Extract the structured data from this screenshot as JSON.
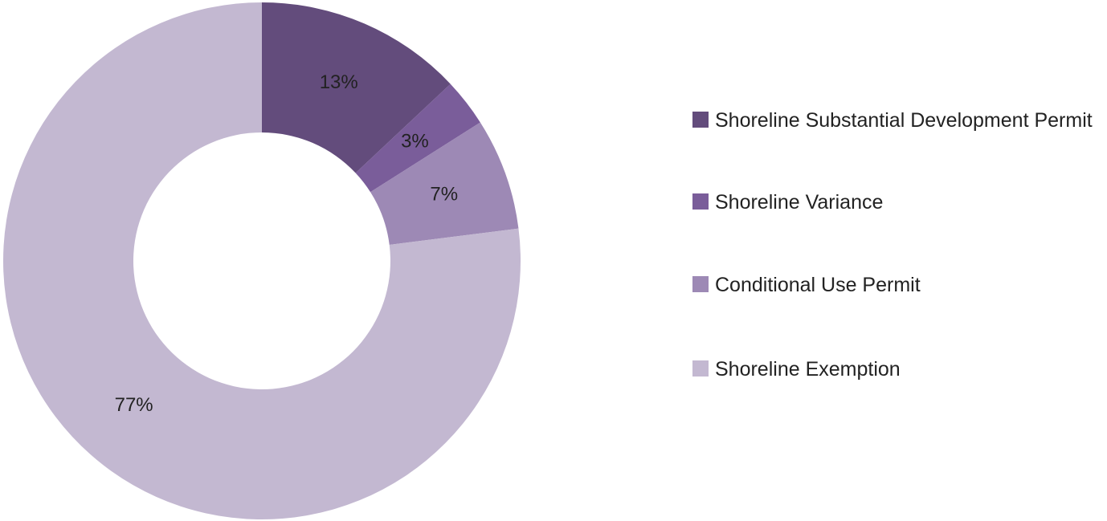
{
  "chart_data": {
    "type": "donut",
    "categories": [
      "Shoreline Substantial Development Permit",
      "Shoreline Variance",
      "Conditional Use Permit",
      "Shoreline Exemption"
    ],
    "values": [
      13,
      3,
      7,
      77
    ],
    "value_labels": [
      "13%",
      "3%",
      "7%",
      "77%"
    ],
    "colors": [
      "#634c7c",
      "#7a5d9a",
      "#9d89b5",
      "#c3b8d1"
    ],
    "legend": "right"
  }
}
